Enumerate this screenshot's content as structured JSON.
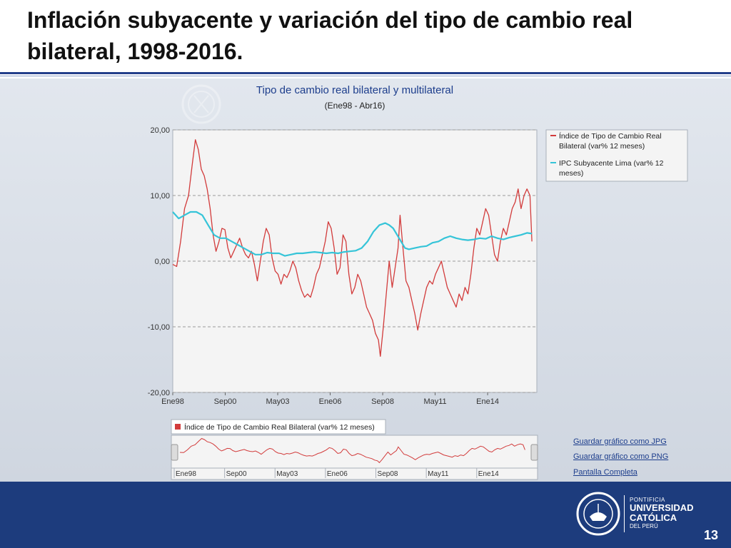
{
  "slide": {
    "title": "Inflación subyacente y variación del tipo de cambio real bilateral, 1998-2016.",
    "page_number": "13"
  },
  "chart_data": {
    "type": "line",
    "title": "Tipo de cambio real bilateral y multilateral",
    "subtitle": "(Ene98 - Abr16)",
    "xlabel": "",
    "ylabel": "",
    "ylim": [
      -20,
      20
    ],
    "yticks": [
      "20,00",
      "10,00",
      "0,00",
      "-10,00",
      "-20,00"
    ],
    "ytick_values": [
      20,
      10,
      0,
      -10,
      -20
    ],
    "xticks": [
      "Ene98",
      "Sep00",
      "May03",
      "Ene06",
      "Sep08",
      "May11",
      "Ene14"
    ],
    "xtick_values": [
      1998.0,
      2000.667,
      2003.333,
      2006.0,
      2008.667,
      2011.333,
      2014.0
    ],
    "xlim": [
      1998.0,
      2016.5
    ],
    "grid": true,
    "legend_position": "top-right",
    "series": [
      {
        "name": "Índice de Tipo de Cambio Real Bilateral (var% 12 meses)",
        "color": "#d23b3b",
        "points": [
          [
            1998.0,
            -0.5
          ],
          [
            1998.2,
            -0.8
          ],
          [
            1998.4,
            3
          ],
          [
            1998.6,
            8
          ],
          [
            1998.8,
            10
          ],
          [
            1999.0,
            15
          ],
          [
            1999.15,
            18.5
          ],
          [
            1999.3,
            17
          ],
          [
            1999.45,
            14
          ],
          [
            1999.6,
            13
          ],
          [
            1999.75,
            11
          ],
          [
            1999.9,
            8
          ],
          [
            2000.05,
            4
          ],
          [
            2000.2,
            1.5
          ],
          [
            2000.35,
            3
          ],
          [
            2000.5,
            5
          ],
          [
            2000.65,
            4.8
          ],
          [
            2000.8,
            2
          ],
          [
            2000.95,
            0.5
          ],
          [
            2001.1,
            1.5
          ],
          [
            2001.25,
            2.5
          ],
          [
            2001.4,
            3.5
          ],
          [
            2001.55,
            2
          ],
          [
            2001.7,
            1
          ],
          [
            2001.85,
            0.5
          ],
          [
            2002.0,
            1.5
          ],
          [
            2002.15,
            -0.5
          ],
          [
            2002.3,
            -3
          ],
          [
            2002.45,
            0
          ],
          [
            2002.6,
            3
          ],
          [
            2002.75,
            5
          ],
          [
            2002.9,
            4
          ],
          [
            2003.05,
            0.5
          ],
          [
            2003.2,
            -1.5
          ],
          [
            2003.35,
            -2
          ],
          [
            2003.5,
            -3.5
          ],
          [
            2003.65,
            -2
          ],
          [
            2003.8,
            -2.5
          ],
          [
            2003.95,
            -1.5
          ],
          [
            2004.1,
            0
          ],
          [
            2004.25,
            -1
          ],
          [
            2004.4,
            -3
          ],
          [
            2004.55,
            -4.5
          ],
          [
            2004.7,
            -5.5
          ],
          [
            2004.85,
            -5
          ],
          [
            2005.0,
            -5.5
          ],
          [
            2005.15,
            -4
          ],
          [
            2005.3,
            -2
          ],
          [
            2005.45,
            -1
          ],
          [
            2005.6,
            1
          ],
          [
            2005.75,
            3
          ],
          [
            2005.9,
            6
          ],
          [
            2006.05,
            5
          ],
          [
            2006.2,
            2
          ],
          [
            2006.35,
            -2
          ],
          [
            2006.5,
            -1
          ],
          [
            2006.65,
            4
          ],
          [
            2006.8,
            3
          ],
          [
            2006.95,
            -2
          ],
          [
            2007.1,
            -5
          ],
          [
            2007.25,
            -4
          ],
          [
            2007.4,
            -2
          ],
          [
            2007.55,
            -3
          ],
          [
            2007.7,
            -5
          ],
          [
            2007.85,
            -7
          ],
          [
            2008.0,
            -8
          ],
          [
            2008.15,
            -9
          ],
          [
            2008.3,
            -11
          ],
          [
            2008.45,
            -12
          ],
          [
            2008.55,
            -14.5
          ],
          [
            2008.7,
            -10
          ],
          [
            2008.85,
            -5
          ],
          [
            2009.0,
            0
          ],
          [
            2009.15,
            -4
          ],
          [
            2009.3,
            -1
          ],
          [
            2009.45,
            2
          ],
          [
            2009.55,
            7
          ],
          [
            2009.7,
            2
          ],
          [
            2009.85,
            -3
          ],
          [
            2010.0,
            -4
          ],
          [
            2010.15,
            -6
          ],
          [
            2010.3,
            -8
          ],
          [
            2010.45,
            -10.5
          ],
          [
            2010.6,
            -8
          ],
          [
            2010.75,
            -6
          ],
          [
            2010.9,
            -4
          ],
          [
            2011.05,
            -3
          ],
          [
            2011.2,
            -3.5
          ],
          [
            2011.35,
            -2
          ],
          [
            2011.5,
            -1
          ],
          [
            2011.65,
            0
          ],
          [
            2011.8,
            -2
          ],
          [
            2011.95,
            -4
          ],
          [
            2012.1,
            -5
          ],
          [
            2012.25,
            -6
          ],
          [
            2012.4,
            -7
          ],
          [
            2012.55,
            -5
          ],
          [
            2012.7,
            -6
          ],
          [
            2012.85,
            -4
          ],
          [
            2013.0,
            -5
          ],
          [
            2013.15,
            -2
          ],
          [
            2013.3,
            2
          ],
          [
            2013.45,
            5
          ],
          [
            2013.6,
            4
          ],
          [
            2013.75,
            6
          ],
          [
            2013.9,
            8
          ],
          [
            2014.05,
            7
          ],
          [
            2014.2,
            4
          ],
          [
            2014.35,
            1
          ],
          [
            2014.5,
            0
          ],
          [
            2014.65,
            3
          ],
          [
            2014.8,
            5
          ],
          [
            2014.95,
            4
          ],
          [
            2015.1,
            6
          ],
          [
            2015.25,
            8
          ],
          [
            2015.4,
            9
          ],
          [
            2015.55,
            11
          ],
          [
            2015.7,
            8
          ],
          [
            2015.85,
            10
          ],
          [
            2016.0,
            11
          ],
          [
            2016.15,
            10
          ],
          [
            2016.25,
            3
          ]
        ]
      },
      {
        "name": "IPC Subyacente Lima (var% 12 meses)",
        "color": "#35c4d8",
        "points": [
          [
            1998.0,
            7.5
          ],
          [
            1998.3,
            6.5
          ],
          [
            1998.6,
            7
          ],
          [
            1998.9,
            7.5
          ],
          [
            1999.2,
            7.5
          ],
          [
            1999.5,
            7
          ],
          [
            1999.8,
            5.5
          ],
          [
            2000.1,
            4
          ],
          [
            2000.4,
            3.5
          ],
          [
            2000.7,
            3.5
          ],
          [
            2001.0,
            3
          ],
          [
            2001.3,
            2.5
          ],
          [
            2001.6,
            2
          ],
          [
            2001.9,
            1.5
          ],
          [
            2002.2,
            1
          ],
          [
            2002.5,
            1
          ],
          [
            2002.8,
            1.3
          ],
          [
            2003.1,
            1.2
          ],
          [
            2003.4,
            1.2
          ],
          [
            2003.7,
            0.8
          ],
          [
            2004.0,
            1
          ],
          [
            2004.3,
            1.2
          ],
          [
            2004.6,
            1.2
          ],
          [
            2004.9,
            1.3
          ],
          [
            2005.2,
            1.4
          ],
          [
            2005.5,
            1.3
          ],
          [
            2005.8,
            1.2
          ],
          [
            2006.1,
            1.3
          ],
          [
            2006.4,
            1.2
          ],
          [
            2006.7,
            1.4
          ],
          [
            2007.0,
            1.5
          ],
          [
            2007.3,
            1.6
          ],
          [
            2007.6,
            2
          ],
          [
            2007.9,
            3
          ],
          [
            2008.2,
            4.5
          ],
          [
            2008.5,
            5.5
          ],
          [
            2008.8,
            5.8
          ],
          [
            2009.0,
            5.5
          ],
          [
            2009.2,
            5
          ],
          [
            2009.4,
            4
          ],
          [
            2009.6,
            3
          ],
          [
            2009.8,
            2
          ],
          [
            2010.0,
            1.8
          ],
          [
            2010.3,
            2
          ],
          [
            2010.6,
            2.2
          ],
          [
            2010.9,
            2.3
          ],
          [
            2011.2,
            2.8
          ],
          [
            2011.5,
            3
          ],
          [
            2011.8,
            3.5
          ],
          [
            2012.1,
            3.8
          ],
          [
            2012.4,
            3.5
          ],
          [
            2012.7,
            3.3
          ],
          [
            2013.0,
            3.2
          ],
          [
            2013.3,
            3.3
          ],
          [
            2013.6,
            3.5
          ],
          [
            2013.9,
            3.4
          ],
          [
            2014.2,
            3.8
          ],
          [
            2014.5,
            3.5
          ],
          [
            2014.8,
            3.3
          ],
          [
            2015.1,
            3.6
          ],
          [
            2015.4,
            3.8
          ],
          [
            2015.7,
            4
          ],
          [
            2016.0,
            4.3
          ],
          [
            2016.25,
            4.2
          ]
        ]
      }
    ]
  },
  "navigator": {
    "legend": "Índice de Tipo de Cambio Real Bilateral (var% 12 meses)",
    "color": "#d23b3b",
    "ticks": [
      "Ene98",
      "Sep00",
      "May03",
      "Ene06",
      "Sep08",
      "May11",
      "Ene14"
    ]
  },
  "links": {
    "save_jpg": "Guardar gráfico como JPG",
    "save_png": "Guardar gráfico como PNG",
    "fullscreen": "Pantalla Completa"
  },
  "footer": {
    "line1": "PONTIFICIA",
    "line2": "UNIVERSIDAD",
    "line3": "CATÓLICA",
    "line4": "DEL PERÚ"
  }
}
